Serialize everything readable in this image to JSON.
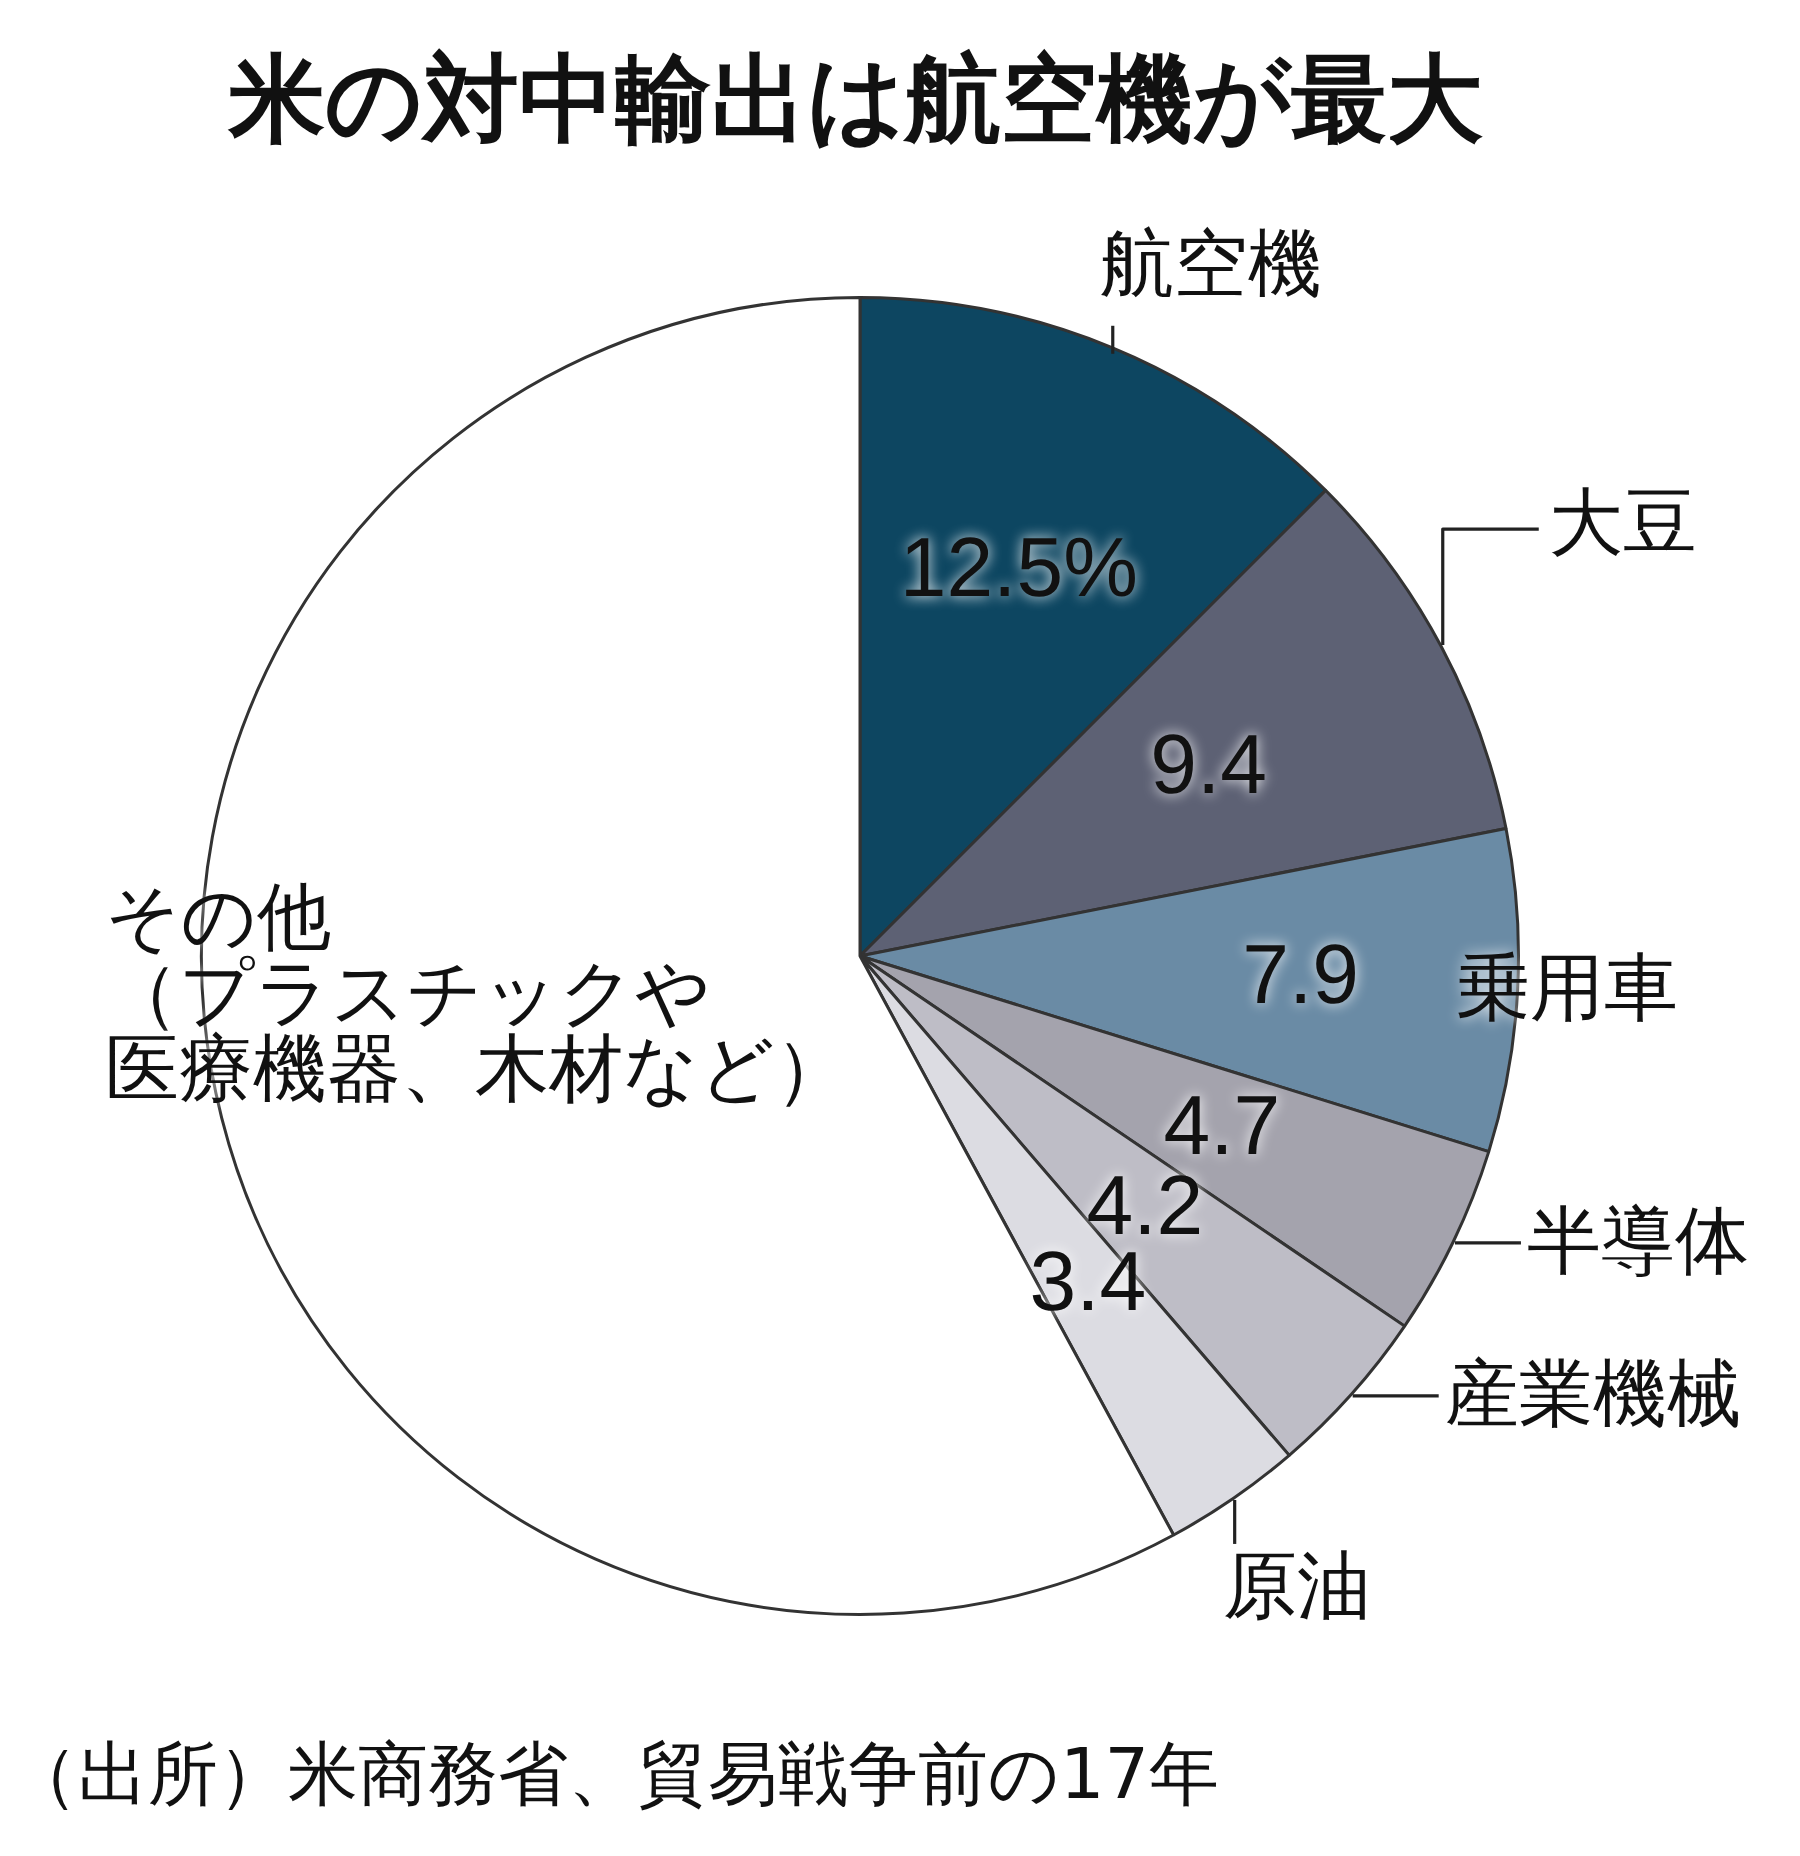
{
  "chart_data": {
    "type": "pie",
    "title": "米の対中輸出は航空機が最大",
    "categories": [
      "航空機",
      "大豆",
      "乗用車",
      "半導体",
      "産業機械",
      "原油",
      "その他（プラスチックや医療機器、木材など）"
    ],
    "values": [
      12.5,
      9.4,
      7.9,
      4.7,
      4.2,
      3.4,
      57.9
    ],
    "colors": [
      "#0d4661",
      "#5d6174",
      "#6a8ba5",
      "#a4a3ad",
      "#bebdc6",
      "#dcdce2",
      "#ffffff"
    ],
    "value_labels": [
      "12.5%",
      "9.4",
      "7.9",
      "4.7",
      "4.2",
      "3.4",
      null
    ],
    "annotations": [
      "（出所）米商務省、貿易戦争前の17年"
    ]
  }
}
